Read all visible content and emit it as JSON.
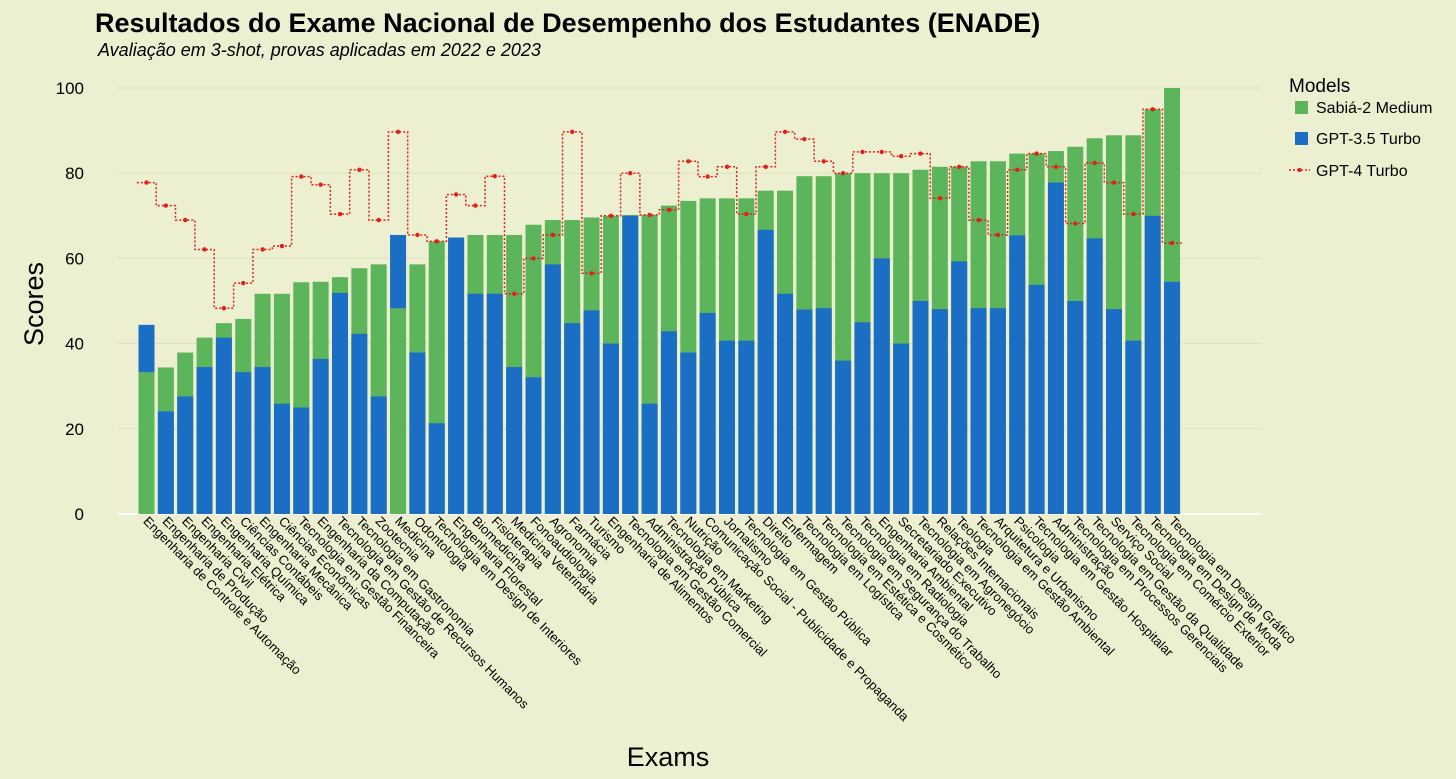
{
  "chart_data": {
    "type": "bar",
    "title": "Resultados do Exame Nacional de Desempenho dos Estudantes (ENADE)",
    "subtitle": "Avaliação em 3-shot, provas aplicadas em 2022 e 2023",
    "xlabel": "Exams",
    "ylabel": "Scores",
    "ylim": [
      0,
      100
    ],
    "yticks": [
      0,
      20,
      40,
      60,
      80,
      100
    ],
    "legend_title": "Models",
    "legend_position": "right",
    "grid": true,
    "colors": {
      "background": "#ecf0d0",
      "sabia": "#5db55b",
      "gpt35": "#1a6ec4",
      "gpt4": "#e0201b",
      "grid": "#dde3bd"
    },
    "categories": [
      "Engenharia de Controle e Automação",
      "Engenharia de Produção",
      "Engenharia Civil",
      "Engenharia Elétrica",
      "Engenharia Química",
      "Ciências Contábeis",
      "Engenharia Mecânica",
      "Ciências Econômicas",
      "Tecnologia em Gestão Financeira",
      "Engenharia da Computação",
      "Tecnologia em Gestão de Recursos Humanos",
      "Tecnologia em Gastronomia",
      "Zootecnia",
      "Medicina",
      "Odontologia",
      "Tecnologia em Design de Interiores",
      "Engenharia Florestal",
      "Biomedicina",
      "Fisioterapia",
      "Medicina Veterinária",
      "Fonoaudiologia",
      "Agronomia",
      "Farmácia",
      "Turismo",
      "Engenharia de Alimentos",
      "Tecnologia em Gestão Comercial",
      "Administração Pública",
      "Tecnologia em Marketing",
      "Nutrição",
      "Comunicação Social - Publicidade e Propaganda",
      "Jornalismo",
      "Tecnologia em Gestão Pública",
      "Direito",
      "Enfermagem",
      "Tecnologia em Logística",
      "Tecnologia em Estética e Cosmético",
      "Tecnologia em Segurança do Trabalho",
      "Tecnologia em Radiologia",
      "Engenharia Ambiental",
      "Secretariado Executivo",
      "Tecnologia em Agronegócio",
      "Relações Internacionais",
      "Teologia",
      "Tecnologia em Gestão Ambiental",
      "Arquitetura e Urbanismo",
      "Psicologia",
      "Tecnologia em Gestão Hospitalar",
      "Administração",
      "Tecnologia em Processos Gerenciais",
      "Tecnologia em Gestão da Qualidade",
      "Serviço Social",
      "Tecnologia em Comércio Exterior",
      "Tecnologia em Design de Moda",
      "Tecnologia em Design Gráfico"
    ],
    "series": [
      {
        "name": "Sabiá-2 Medium",
        "type": "bar",
        "values": [
          33.3,
          34.4,
          37.9,
          41.4,
          44.8,
          45.8,
          51.7,
          51.7,
          54.4,
          54.5,
          55.6,
          57.7,
          58.6,
          48.3,
          58.6,
          64.0,
          64.9,
          65.5,
          65.5,
          65.5,
          67.9,
          69.0,
          69.0,
          69.6,
          70.0,
          70.2,
          70.2,
          72.4,
          73.5,
          74.1,
          74.1,
          74.1,
          75.9,
          75.9,
          79.3,
          79.3,
          80.0,
          80.0,
          80.0,
          80.0,
          80.8,
          81.5,
          81.5,
          82.8,
          82.8,
          84.6,
          84.6,
          85.2,
          86.2,
          88.2,
          88.9,
          88.9,
          95.0,
          100.0
        ]
      },
      {
        "name": "GPT-3.5 Turbo",
        "type": "bar",
        "values": [
          44.4,
          24.1,
          27.6,
          34.5,
          41.4,
          33.3,
          34.5,
          25.9,
          25.0,
          36.4,
          51.9,
          42.3,
          27.6,
          65.5,
          37.9,
          21.3,
          64.9,
          51.7,
          51.7,
          34.5,
          32.1,
          58.6,
          44.8,
          47.8,
          40.0,
          70.0,
          25.9,
          42.9,
          37.9,
          47.2,
          40.7,
          40.7,
          66.7,
          51.7,
          48.0,
          48.3,
          36.0,
          45.0,
          60.0,
          40.0,
          50.0,
          48.1,
          59.3,
          48.3,
          48.3,
          65.4,
          53.8,
          77.8,
          50.0,
          64.7,
          48.1,
          40.7,
          70.0,
          54.5
        ]
      },
      {
        "name": "GPT-4 Turbo",
        "type": "step",
        "values": [
          77.8,
          72.4,
          69.0,
          62.1,
          48.3,
          54.2,
          62.1,
          62.9,
          79.2,
          77.3,
          70.4,
          80.8,
          69.0,
          89.7,
          65.5,
          64.0,
          75.0,
          72.4,
          79.3,
          51.7,
          60.0,
          65.5,
          89.7,
          56.5,
          70.0,
          80.0,
          70.2,
          71.4,
          82.8,
          79.2,
          81.5,
          70.4,
          81.5,
          89.7,
          88.0,
          82.8,
          80.0,
          85.0,
          85.0,
          84.0,
          84.6,
          74.1,
          81.5,
          69.0,
          65.5,
          80.8,
          84.6,
          81.5,
          68.2,
          82.4,
          77.8,
          70.4,
          95.0,
          63.6
        ]
      }
    ]
  }
}
